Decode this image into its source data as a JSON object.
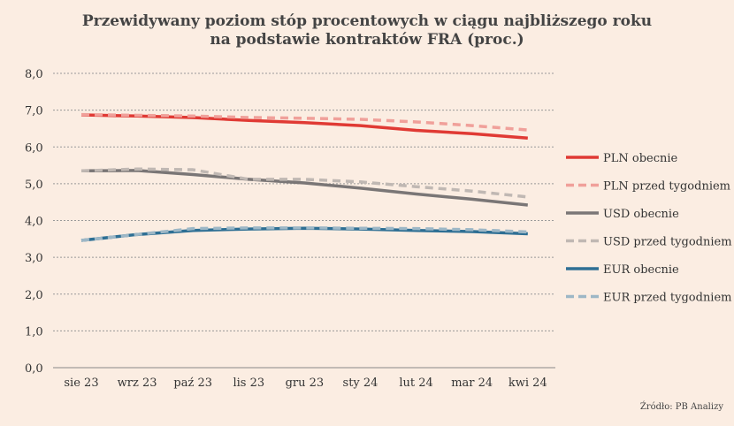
{
  "chart_data": {
    "type": "line",
    "title": [
      "Przewidywany poziom stóp procentowych w ciągu najbliższego roku",
      "na podstawie kontraktów FRA (proc.)"
    ],
    "categories": [
      "sie 23",
      "wrz 23",
      "paź 23",
      "lis 23",
      "gru 23",
      "sty 24",
      "lut 24",
      "mar 24",
      "kwi 24"
    ],
    "ylim": [
      0,
      8
    ],
    "yticks": [
      "0,0",
      "1,0",
      "2,0",
      "3,0",
      "4,0",
      "5,0",
      "6,0",
      "7,0",
      "8,0"
    ],
    "grid": true,
    "legend": "right",
    "series": [
      {
        "name": "PLN obecnie",
        "color": "#e03a34",
        "dash": false,
        "values": [
          6.87,
          6.84,
          6.8,
          6.72,
          6.66,
          6.58,
          6.45,
          6.36,
          6.24
        ]
      },
      {
        "name": "PLN przed tygodniem",
        "color": "#f0a09a",
        "dash": true,
        "values": [
          6.88,
          6.86,
          6.84,
          6.8,
          6.78,
          6.75,
          6.68,
          6.58,
          6.46
        ]
      },
      {
        "name": "USD obecnie",
        "color": "#7a7676",
        "dash": false,
        "values": [
          5.35,
          5.36,
          5.25,
          5.12,
          5.02,
          4.88,
          4.72,
          4.58,
          4.42
        ]
      },
      {
        "name": "USD przed tygodniem",
        "color": "#c0b8b3",
        "dash": true,
        "values": [
          5.35,
          5.4,
          5.38,
          5.12,
          5.12,
          5.05,
          4.92,
          4.8,
          4.64
        ]
      },
      {
        "name": "EUR obecnie",
        "color": "#2e6f94",
        "dash": false,
        "values": [
          3.46,
          3.62,
          3.73,
          3.77,
          3.79,
          3.77,
          3.73,
          3.7,
          3.64
        ]
      },
      {
        "name": "EUR przed tygodniem",
        "color": "#9db7c6",
        "dash": true,
        "values": [
          3.46,
          3.62,
          3.78,
          3.8,
          3.8,
          3.79,
          3.78,
          3.75,
          3.69
        ]
      }
    ]
  },
  "source": "Źródło: PB Analizy"
}
